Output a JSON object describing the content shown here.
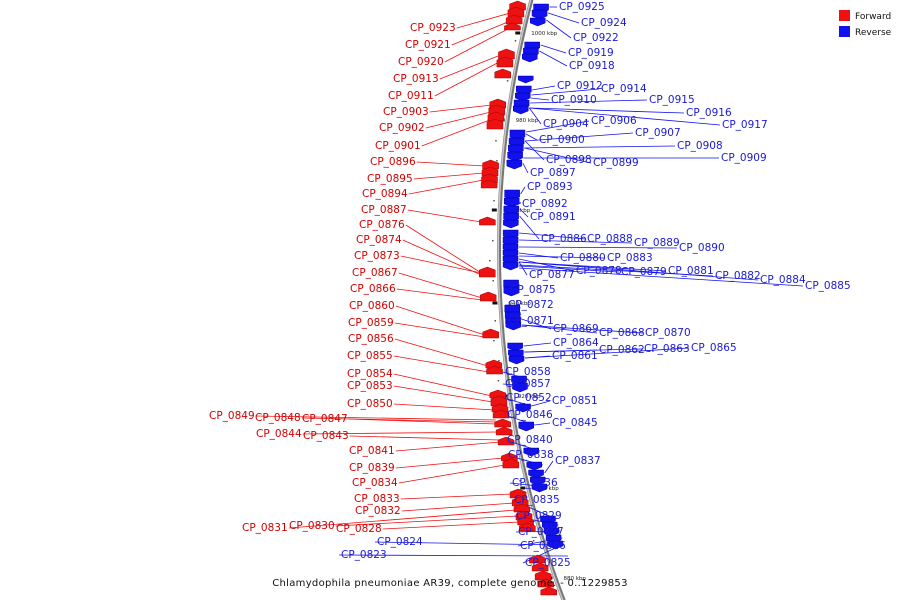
{
  "caption": "Chlamydophila pneumoniae AR39, complete genome. - 0..1229853",
  "legend": [
    {
      "label": "Forward",
      "color": "#ee1111"
    },
    {
      "label": "Reverse",
      "color": "#1111ee"
    }
  ],
  "ticks": [
    "1000 kbp",
    "980 kbp",
    "960 kbp",
    "940 kbp",
    "920 kbp",
    "900 kbp",
    "880 kbp"
  ],
  "forward_genes": [
    "CP_0923",
    "CP_0921",
    "CP_0920",
    "CP_0913",
    "CP_0911",
    "CP_0903",
    "CP_0902",
    "CP_0901",
    "CP_0896",
    "CP_0895",
    "CP_0894",
    "CP_0887",
    "CP_0876",
    "CP_0874",
    "CP_0873",
    "CP_0867",
    "CP_0866",
    "CP_0860",
    "CP_0859",
    "CP_0856",
    "CP_0855",
    "CP_0854",
    "CP_0853",
    "CP_0850",
    "CP_0849",
    "CP_0848",
    "CP_0847",
    "CP_0844",
    "CP_0843",
    "CP_0841",
    "CP_0839",
    "CP_0834",
    "CP_0833",
    "CP_0832",
    "CP_0831",
    "CP_0830",
    "CP_0828"
  ],
  "reverse_genes": [
    "CP_0925",
    "CP_0924",
    "CP_0922",
    "CP_0919",
    "CP_0918",
    "CP_0912",
    "CP_0914",
    "CP_0915",
    "CP_0916",
    "CP_0917",
    "CP_0910",
    "CP_0904",
    "CP_0906",
    "CP_0907",
    "CP_0908",
    "CP_0909",
    "CP_0900",
    "CP_0898",
    "CP_0899",
    "CP_0897",
    "CP_0893",
    "CP_0892",
    "CP_0891",
    "CP_0886",
    "CP_0888",
    "CP_0889",
    "CP_0890",
    "CP_0880",
    "CP_0883",
    "CP_0877",
    "CP_0878",
    "CP_0879",
    "CP_0881",
    "CP_0882",
    "CP_0884",
    "CP_0885",
    "CP_0875",
    "CP_0872",
    "CP_0871",
    "CP_0869",
    "CP_0868",
    "CP_0870",
    "CP_0864",
    "CP_0862",
    "CP_0863",
    "CP_0865",
    "CP_0861",
    "CP_0858",
    "CP_0857",
    "CP_0852",
    "CP_0851",
    "CP_0846",
    "CP_0845",
    "CP_0840",
    "CP_0838",
    "CP_0837",
    "CP_0836",
    "CP_0835",
    "CP_0829",
    "CP_0827",
    "CP_0826",
    "CP_0825",
    "CP_0824",
    "CP_0823"
  ]
}
